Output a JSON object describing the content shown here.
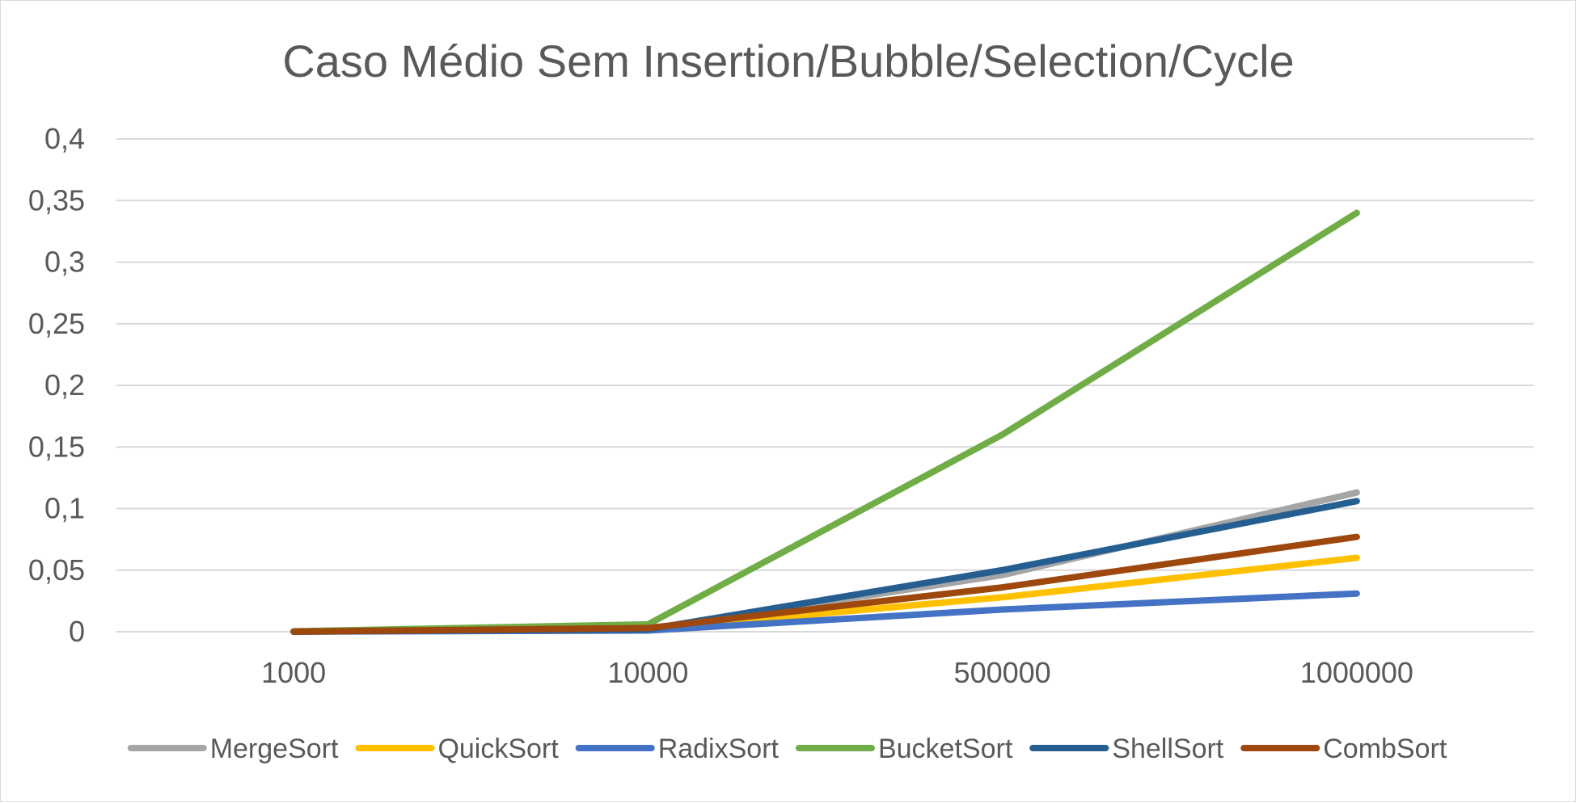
{
  "chart_data": {
    "type": "line",
    "title": "Caso Médio Sem Insertion/Bubble/Selection/Cycle",
    "xlabel": "",
    "ylabel": "",
    "categories": [
      "1000",
      "10000",
      "500000",
      "1000000"
    ],
    "yticks": [
      "0",
      "0,05",
      "0,1",
      "0,15",
      "0,2",
      "0,25",
      "0,3",
      "0,35",
      "0,4"
    ],
    "ylim": [
      0,
      0.4
    ],
    "grid": true,
    "legend_position": "bottom",
    "series": [
      {
        "name": "MergeSort",
        "color": "#a5a5a5",
        "values": [
          0.0001,
          0.002,
          0.046,
          0.113
        ]
      },
      {
        "name": "QuickSort",
        "color": "#ffc000",
        "values": [
          0.0001,
          0.002,
          0.028,
          0.06
        ]
      },
      {
        "name": "RadixSort",
        "color": "#4472c4",
        "values": [
          0.0001,
          0.001,
          0.018,
          0.031
        ]
      },
      {
        "name": "BucketSort",
        "color": "#70ad47",
        "values": [
          0.0003,
          0.006,
          0.16,
          0.34
        ]
      },
      {
        "name": "ShellSort",
        "color": "#255e91",
        "values": [
          0.0001,
          0.002,
          0.05,
          0.106
        ]
      },
      {
        "name": "CombSort",
        "color": "#9e480e",
        "values": [
          0.0001,
          0.003,
          0.036,
          0.077
        ]
      }
    ]
  }
}
